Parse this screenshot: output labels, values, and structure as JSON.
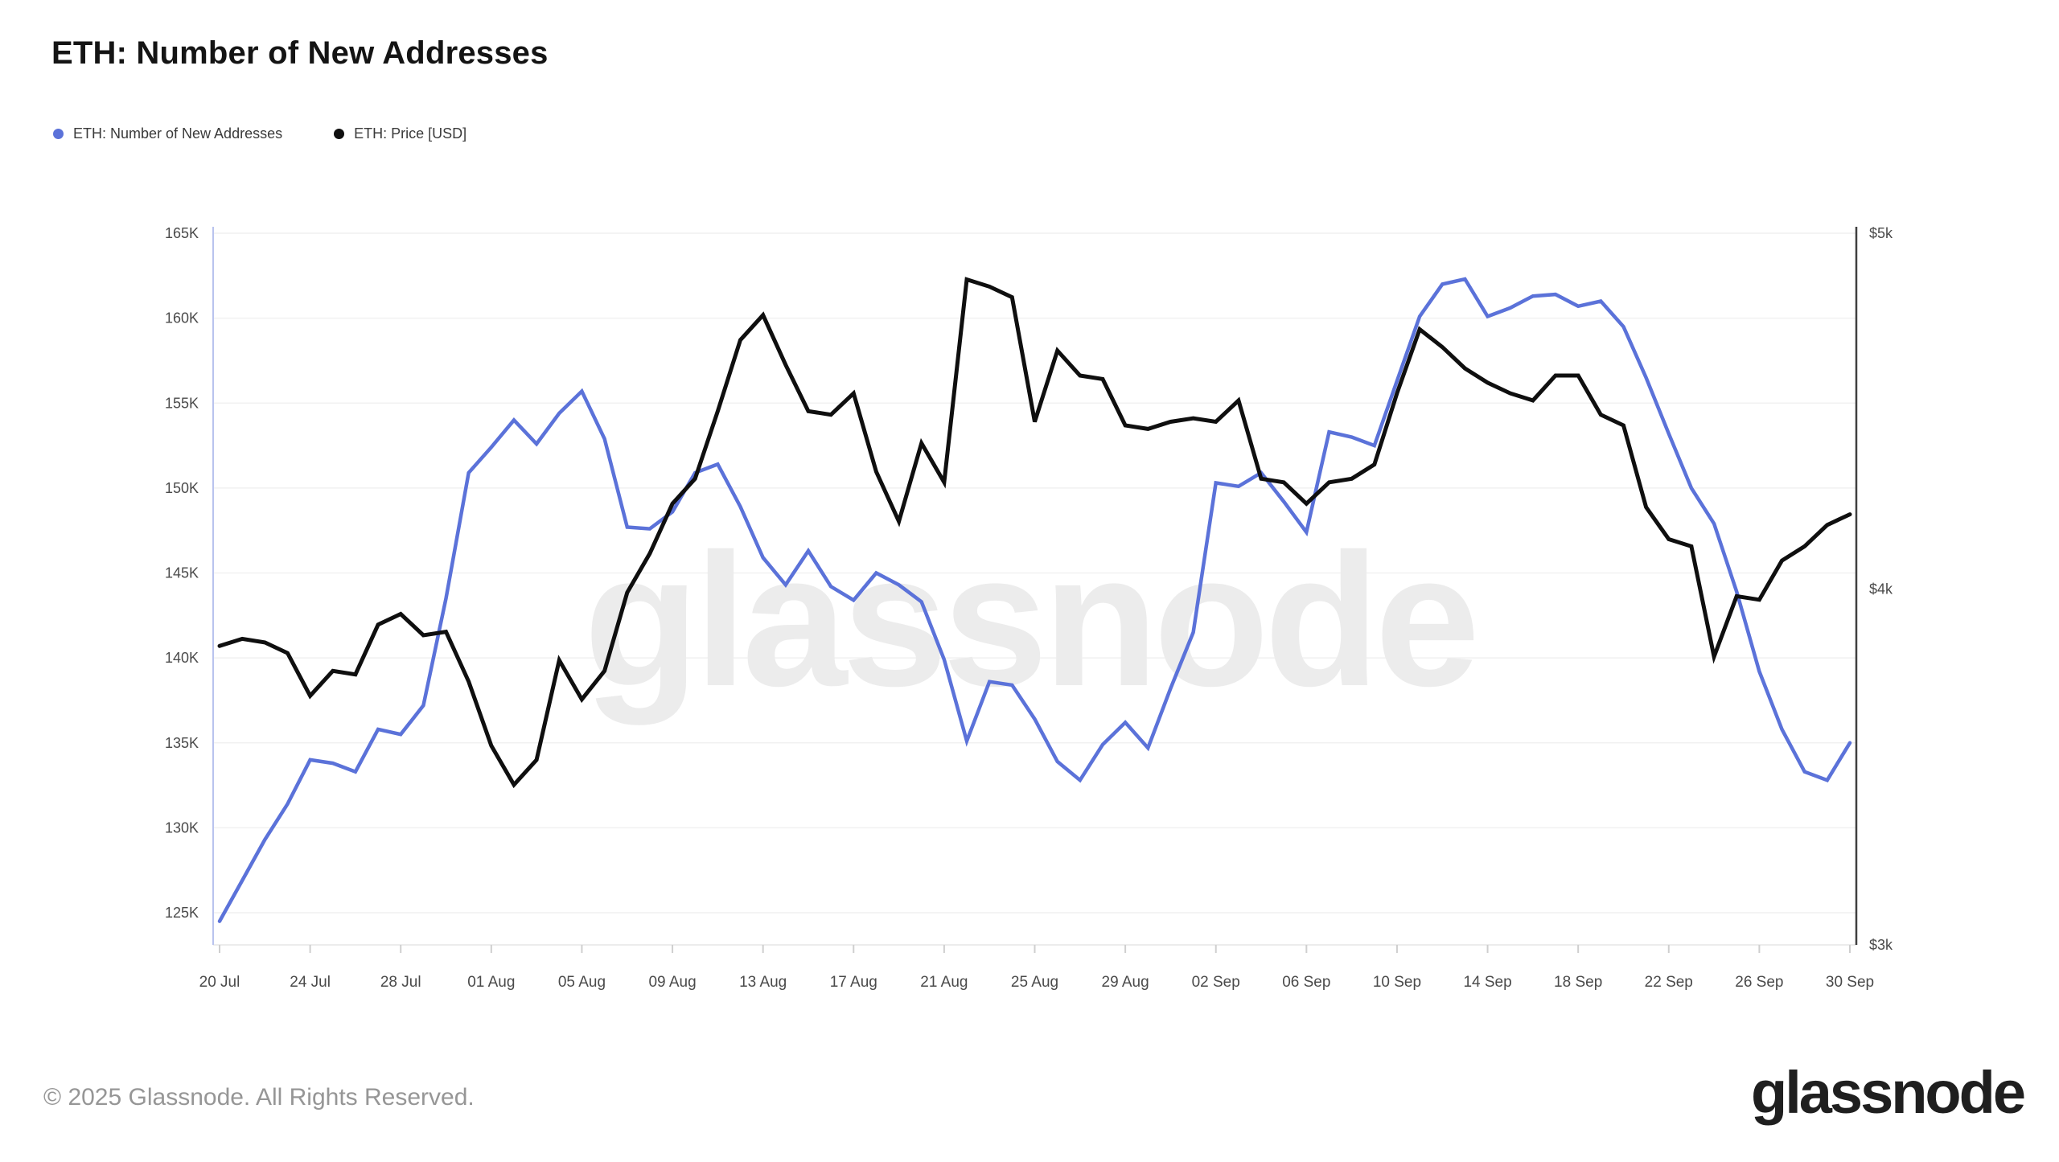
{
  "page": {
    "title": "ETH: Number of New Addresses"
  },
  "legend": {
    "items": [
      {
        "label": "ETH: Number of New Addresses",
        "color": "#5b72d9"
      },
      {
        "label": "ETH: Price [USD]",
        "color": "#0f0f0f"
      }
    ]
  },
  "watermark": {
    "text": "glassnode",
    "color": "#ececec"
  },
  "footer": {
    "copyright": "© 2025 Glassnode. All Rights Reserved.",
    "logo_text": "glassnode"
  },
  "chart_data": {
    "type": "line",
    "title": "ETH: Number of New Addresses",
    "grid": "horizontal-only",
    "legend_position": "top-left",
    "x_tick_labels": [
      "20 Jul",
      "24 Jul",
      "28 Jul",
      "01 Aug",
      "05 Aug",
      "09 Aug",
      "13 Aug",
      "17 Aug",
      "21 Aug",
      "25 Aug",
      "29 Aug",
      "02 Sep",
      "06 Sep",
      "10 Sep",
      "14 Sep",
      "18 Sep",
      "22 Sep",
      "26 Sep",
      "30 Sep"
    ],
    "x": [
      "20 Jul",
      "21 Jul",
      "22 Jul",
      "23 Jul",
      "24 Jul",
      "25 Jul",
      "26 Jul",
      "27 Jul",
      "28 Jul",
      "29 Jul",
      "30 Jul",
      "31 Jul",
      "01 Aug",
      "02 Aug",
      "03 Aug",
      "04 Aug",
      "05 Aug",
      "06 Aug",
      "07 Aug",
      "08 Aug",
      "09 Aug",
      "10 Aug",
      "11 Aug",
      "12 Aug",
      "13 Aug",
      "14 Aug",
      "15 Aug",
      "16 Aug",
      "17 Aug",
      "18 Aug",
      "19 Aug",
      "20 Aug",
      "21 Aug",
      "22 Aug",
      "23 Aug",
      "24 Aug",
      "25 Aug",
      "26 Aug",
      "27 Aug",
      "28 Aug",
      "29 Aug",
      "30 Aug",
      "31 Aug",
      "01 Sep",
      "02 Sep",
      "03 Sep",
      "04 Sep",
      "05 Sep",
      "06 Sep",
      "07 Sep",
      "08 Sep",
      "09 Sep",
      "10 Sep",
      "11 Sep",
      "12 Sep",
      "13 Sep",
      "14 Sep",
      "15 Sep",
      "16 Sep",
      "17 Sep",
      "18 Sep",
      "19 Sep",
      "20 Sep",
      "21 Sep",
      "22 Sep",
      "23 Sep",
      "24 Sep",
      "25 Sep",
      "26 Sep",
      "27 Sep",
      "28 Sep",
      "29 Sep",
      "30 Sep"
    ],
    "y_left": {
      "min": 125000,
      "max": 165000,
      "ticks": [
        "165K",
        "160K",
        "155K",
        "150K",
        "145K",
        "140K",
        "135K",
        "130K",
        "125K"
      ]
    },
    "y_right": {
      "min": 3000,
      "max": 5000,
      "ticks": [
        "$5k",
        "$4k",
        "$3k"
      ]
    },
    "series": [
      {
        "name": "ETH: Number of New Addresses",
        "axis": "left",
        "color": "#5b72d9",
        "stroke_width": 4.5,
        "values": [
          124500,
          126900,
          129300,
          131400,
          134000,
          133800,
          133300,
          135800,
          135500,
          137200,
          143500,
          150900,
          152400,
          154000,
          152600,
          154400,
          155700,
          152900,
          147700,
          147600,
          148600,
          150900,
          151400,
          148900,
          145900,
          144300,
          146300,
          144200,
          143400,
          145000,
          144300,
          143300,
          139900,
          135100,
          138600,
          138400,
          136400,
          133900,
          132800,
          134900,
          136200,
          134700,
          138200,
          141500,
          150300,
          150100,
          150900,
          149200,
          147400,
          153300,
          153000,
          152500,
          156300,
          160100,
          162000,
          162300,
          160100,
          160600,
          161300,
          161400,
          160700,
          161000,
          159500,
          156500,
          153200,
          150000,
          147900,
          143900,
          139200,
          135800,
          133300,
          132800,
          135000
        ]
      },
      {
        "name": "ETH: Price [USD]",
        "axis": "right",
        "color": "#0f0f0f",
        "stroke_width": 5,
        "values": [
          3840,
          3860,
          3850,
          3820,
          3700,
          3770,
          3760,
          3900,
          3930,
          3870,
          3880,
          3740,
          3560,
          3450,
          3520,
          3800,
          3690,
          3770,
          3990,
          4100,
          4240,
          4310,
          4500,
          4700,
          4770,
          4630,
          4500,
          4490,
          4550,
          4330,
          4190,
          4410,
          4300,
          4870,
          4850,
          4820,
          4470,
          4670,
          4600,
          4590,
          4460,
          4450,
          4470,
          4480,
          4470,
          4530,
          4310,
          4300,
          4240,
          4300,
          4310,
          4350,
          4550,
          4730,
          4680,
          4620,
          4580,
          4550,
          4530,
          4600,
          4600,
          4490,
          4460,
          4230,
          4140,
          4120,
          3810,
          3980,
          3970,
          4080,
          4120,
          4180,
          4210
        ]
      }
    ]
  }
}
